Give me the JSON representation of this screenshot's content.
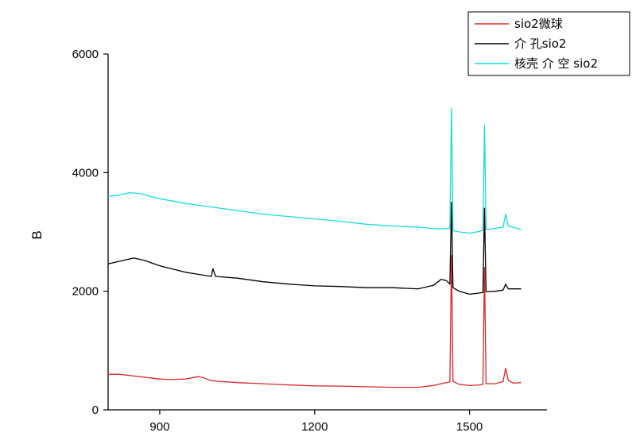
{
  "chart_data": {
    "type": "line",
    "title": "",
    "xlabel": "",
    "ylabel": "B",
    "xlim": [
      800,
      1650
    ],
    "ylim": [
      0,
      6000
    ],
    "x_ticks": [
      900,
      1200,
      1500
    ],
    "y_ticks": [
      0,
      2000,
      4000,
      6000
    ],
    "x_tick_labels": [
      "900",
      "1200",
      "1500"
    ],
    "y_tick_labels": [
      "0",
      "2000",
      "4000",
      "6000"
    ],
    "grid": false,
    "legend_position": "top-right",
    "series": [
      {
        "name": "sio2微球",
        "color": "#d62728",
        "points": [
          [
            800,
            600
          ],
          [
            820,
            600
          ],
          [
            850,
            570
          ],
          [
            880,
            540
          ],
          [
            900,
            520
          ],
          [
            920,
            510
          ],
          [
            950,
            520
          ],
          [
            975,
            560
          ],
          [
            985,
            540
          ],
          [
            1000,
            490
          ],
          [
            1050,
            460
          ],
          [
            1100,
            440
          ],
          [
            1150,
            420
          ],
          [
            1200,
            405
          ],
          [
            1250,
            400
          ],
          [
            1300,
            390
          ],
          [
            1350,
            380
          ],
          [
            1400,
            380
          ],
          [
            1430,
            410
          ],
          [
            1450,
            450
          ],
          [
            1462,
            470
          ],
          [
            1465,
            2600
          ],
          [
            1468,
            480
          ],
          [
            1480,
            430
          ],
          [
            1500,
            410
          ],
          [
            1520,
            420
          ],
          [
            1526,
            430
          ],
          [
            1529,
            2400
          ],
          [
            1532,
            440
          ],
          [
            1550,
            440
          ],
          [
            1565,
            480
          ],
          [
            1570,
            700
          ],
          [
            1575,
            500
          ],
          [
            1585,
            450
          ],
          [
            1600,
            460
          ]
        ]
      },
      {
        "name": "介 孔sio2",
        "color": "#000000",
        "points": [
          [
            800,
            2460
          ],
          [
            820,
            2500
          ],
          [
            840,
            2540
          ],
          [
            850,
            2560
          ],
          [
            870,
            2520
          ],
          [
            900,
            2430
          ],
          [
            950,
            2320
          ],
          [
            1000,
            2250
          ],
          [
            1003,
            2380
          ],
          [
            1008,
            2250
          ],
          [
            1050,
            2220
          ],
          [
            1100,
            2160
          ],
          [
            1150,
            2120
          ],
          [
            1200,
            2090
          ],
          [
            1250,
            2080
          ],
          [
            1300,
            2060
          ],
          [
            1350,
            2060
          ],
          [
            1400,
            2040
          ],
          [
            1430,
            2100
          ],
          [
            1445,
            2200
          ],
          [
            1455,
            2180
          ],
          [
            1462,
            2120
          ],
          [
            1465,
            3500
          ],
          [
            1468,
            2060
          ],
          [
            1480,
            2000
          ],
          [
            1500,
            1950
          ],
          [
            1520,
            1970
          ],
          [
            1526,
            1980
          ],
          [
            1529,
            3400
          ],
          [
            1532,
            1990
          ],
          [
            1550,
            2000
          ],
          [
            1565,
            2020
          ],
          [
            1570,
            2120
          ],
          [
            1575,
            2040
          ],
          [
            1600,
            2040
          ]
        ]
      },
      {
        "name": "核壳 介 空 sio2",
        "color": "#17d9de",
        "points": [
          [
            800,
            3600
          ],
          [
            820,
            3620
          ],
          [
            840,
            3660
          ],
          [
            860,
            3650
          ],
          [
            900,
            3560
          ],
          [
            950,
            3480
          ],
          [
            1000,
            3420
          ],
          [
            1050,
            3360
          ],
          [
            1100,
            3300
          ],
          [
            1150,
            3260
          ],
          [
            1200,
            3220
          ],
          [
            1250,
            3180
          ],
          [
            1300,
            3130
          ],
          [
            1350,
            3100
          ],
          [
            1400,
            3080
          ],
          [
            1440,
            3050
          ],
          [
            1462,
            3060
          ],
          [
            1465,
            5080
          ],
          [
            1468,
            3020
          ],
          [
            1480,
            3000
          ],
          [
            1500,
            2980
          ],
          [
            1520,
            3010
          ],
          [
            1526,
            3030
          ],
          [
            1529,
            4800
          ],
          [
            1532,
            3040
          ],
          [
            1550,
            3060
          ],
          [
            1565,
            3080
          ],
          [
            1570,
            3300
          ],
          [
            1575,
            3100
          ],
          [
            1600,
            3040
          ]
        ]
      }
    ]
  }
}
